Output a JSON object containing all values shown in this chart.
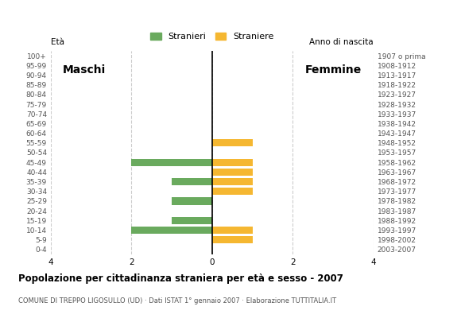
{
  "age_groups": [
    "100+",
    "95-99",
    "90-94",
    "85-89",
    "80-84",
    "75-79",
    "70-74",
    "65-69",
    "60-64",
    "55-59",
    "50-54",
    "45-49",
    "40-44",
    "35-39",
    "30-34",
    "25-29",
    "20-24",
    "15-19",
    "10-14",
    "5-9",
    "0-4"
  ],
  "birth_years": [
    "1907 o prima",
    "1908-1912",
    "1913-1917",
    "1918-1922",
    "1923-1927",
    "1928-1932",
    "1933-1937",
    "1938-1942",
    "1943-1947",
    "1948-1952",
    "1953-1957",
    "1958-1962",
    "1963-1967",
    "1968-1972",
    "1973-1977",
    "1978-1982",
    "1983-1987",
    "1988-1992",
    "1993-1997",
    "1998-2002",
    "2003-2007"
  ],
  "males": [
    0,
    0,
    0,
    0,
    0,
    0,
    0,
    0,
    0,
    0,
    0,
    2,
    0,
    1,
    0,
    1,
    0,
    1,
    2,
    0,
    0
  ],
  "females": [
    0,
    0,
    0,
    0,
    0,
    0,
    0,
    0,
    0,
    1,
    0,
    1,
    1,
    1,
    1,
    0,
    0,
    0,
    1,
    1,
    0
  ],
  "male_color": "#6aaa5e",
  "female_color": "#f5b731",
  "title": "Popolazione per cittadinanza straniera per età e sesso - 2007",
  "subtitle": "COMUNE DI TREPPO LIGOSULLO (UD) · Dati ISTAT 1° gennaio 2007 · Elaborazione TUTTITALIA.IT",
  "legend_male": "Stranieri",
  "legend_female": "Straniere",
  "xlim": 4,
  "ylabel_left": "Età",
  "ylabel_right": "Anno di nascita",
  "label_maschi": "Maschi",
  "label_femmine": "Femmine",
  "bg_color": "#ffffff",
  "grid_color": "#cccccc",
  "bar_height": 0.75
}
